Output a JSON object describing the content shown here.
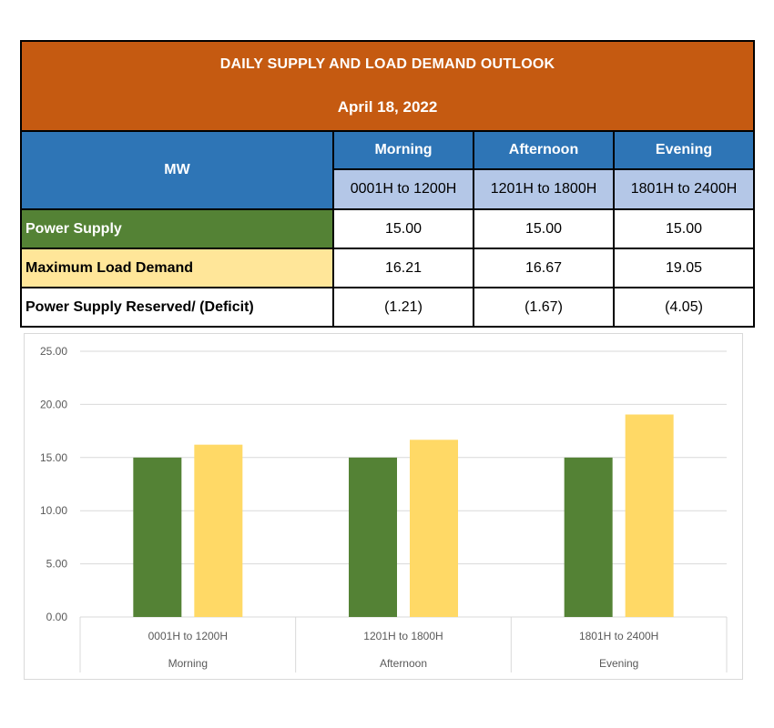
{
  "table": {
    "title": "DAILY SUPPLY AND LOAD DEMAND OUTLOOK",
    "date": "April 18, 2022",
    "unit_header": "MW",
    "periods": [
      {
        "name": "Morning",
        "range": "0001H to 1200H"
      },
      {
        "name": "Afternoon",
        "range": "1201H to 1800H"
      },
      {
        "name": "Evening",
        "range": "1801H to 2400H"
      }
    ],
    "rows": [
      {
        "label": "Power Supply",
        "values": [
          "15.00",
          "15.00",
          "15.00"
        ]
      },
      {
        "label": "Maximum Load Demand",
        "values": [
          "16.21",
          "16.67",
          "19.05"
        ]
      },
      {
        "label": "Power Supply Reserved/ (Deficit)",
        "values": [
          "(1.21)",
          "(1.67)",
          "(4.05)"
        ]
      }
    ]
  },
  "colors": {
    "title_bg": "#c55a11",
    "header_bg": "#2e75b6",
    "subheader_bg": "#b4c7e7",
    "supply": "#548235",
    "demand": "#ffd966",
    "demand_label_bg": "#ffe699"
  },
  "chart_data": {
    "type": "bar",
    "categories": [
      {
        "range": "0001H to 1200H",
        "name": "Morning"
      },
      {
        "range": "1201H to 1800H",
        "name": "Afternoon"
      },
      {
        "range": "1801H to 2400H",
        "name": "Evening"
      }
    ],
    "series": [
      {
        "values": [
          15.0,
          15.0,
          15.0
        ],
        "color": "#548235"
      },
      {
        "values": [
          16.21,
          16.67,
          19.05
        ],
        "color": "#ffd966"
      }
    ],
    "ylim": [
      0,
      25
    ],
    "yticks": [
      "0.00",
      "5.00",
      "10.00",
      "15.00",
      "20.00",
      "25.00"
    ],
    "ytick_values": [
      0,
      5,
      10,
      15,
      20,
      25
    ],
    "grid": true,
    "legend": "none"
  }
}
